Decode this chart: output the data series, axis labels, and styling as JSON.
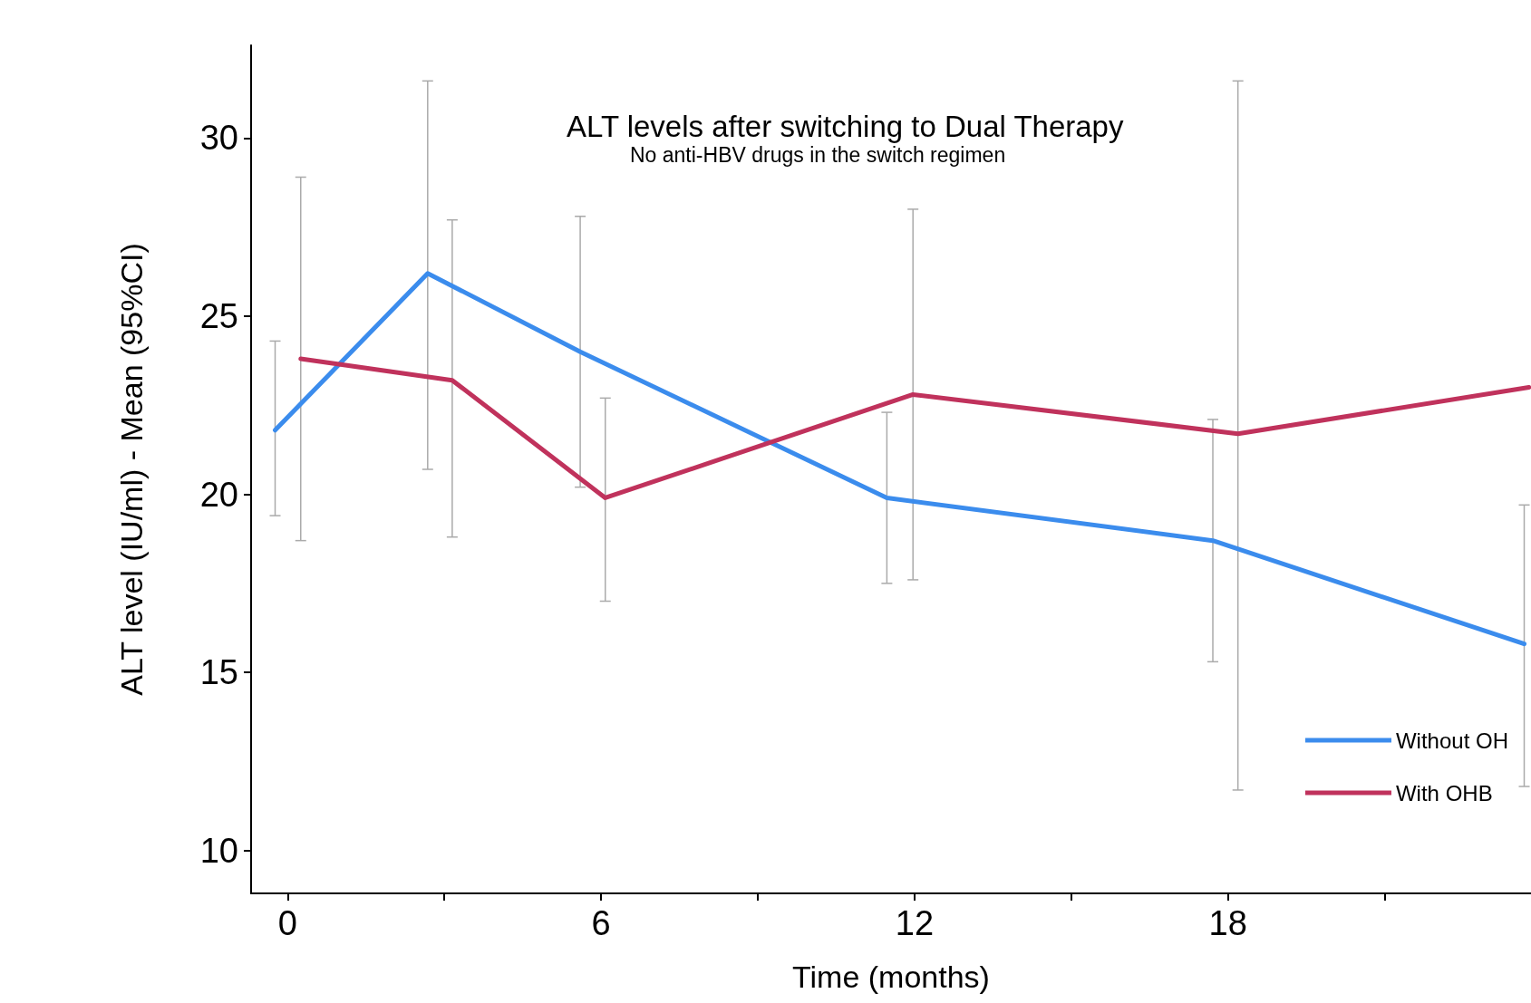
{
  "chart_data": {
    "type": "line",
    "title": "ALT levels after switching to Dual Therapy",
    "subtitle": "No anti-HBV drugs in the switch regimen",
    "xlabel": "Time (months)",
    "ylabel": "ALT level (IU/ml) - Mean (95%CI)",
    "xlim": [
      -0.7,
      23.8
    ],
    "xticks": [
      0,
      {
        "value": 3,
        "label": null
      },
      6,
      {
        "value": 9,
        "label": null
      },
      12,
      {
        "value": 15,
        "label": null
      },
      18,
      {
        "value": 21,
        "label": null
      }
    ],
    "ylim": [
      8.8,
      32.6
    ],
    "yticks": [
      10,
      15,
      20,
      25,
      30
    ],
    "grid": false,
    "legend": "bottom right",
    "marker": "none",
    "line_style": "solid",
    "series": [
      {
        "name": "Without OH",
        "color": "#3b8ced",
        "x": [
          -0.24,
          2.68,
          5.6,
          11.47,
          17.71,
          23.67
        ],
        "values": [
          21.8,
          26.2,
          24,
          19.9,
          18.7,
          15.8
        ],
        "errors": [
          [
            19.4,
            24.3
          ],
          [
            20.7,
            31.6
          ],
          [
            20.2,
            27.8
          ],
          [
            17.5,
            22.3
          ],
          [
            15.3,
            22.1
          ],
          [
            11.8,
            19.7
          ]
        ]
      },
      {
        "name": "With OHB",
        "color": "#c0325c",
        "x": [
          0.25,
          3.15,
          6.08,
          11.97,
          18.19,
          23.76
        ],
        "values": [
          23.8,
          23.2,
          19.9,
          22.8,
          21.7,
          23
        ],
        "errors": [
          [
            18.7,
            28.9
          ],
          [
            18.8,
            27.7
          ],
          [
            17,
            22.7
          ],
          [
            17.6,
            28
          ],
          [
            11.7,
            31.6
          ],
          null
        ]
      }
    ]
  }
}
